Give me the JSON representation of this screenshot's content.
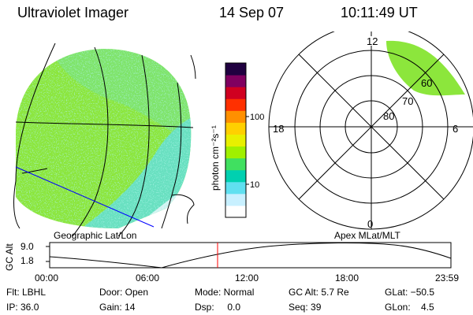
{
  "header": {
    "instrument": "Ultraviolet Imager",
    "date": "14 Sep 07",
    "time": "10:11:49 UT"
  },
  "colorbar": {
    "label": "photon cm⁻²s⁻¹",
    "ticks": [
      "100",
      "10"
    ],
    "colors": [
      "#ffffff",
      "#c8f0ff",
      "#60e0f0",
      "#00d0b0",
      "#40e060",
      "#a0f000",
      "#e8f000",
      "#ffd000",
      "#ff9000",
      "#ff3000",
      "#d00020",
      "#800060",
      "#200040"
    ]
  },
  "globe": {
    "label": "Geographic Lat/Lon",
    "fill_main": "#8ce63c",
    "fill_cyan": "#68e0c0",
    "grid_color": "#000000",
    "track_color": "#0000ff"
  },
  "polar": {
    "label": "Apex MLat/MLT",
    "mlt_labels": {
      "top": "12",
      "right": "6",
      "bottom": "0",
      "left": "18"
    },
    "lat_labels": [
      "60",
      "70",
      "80"
    ],
    "aurora_color": "#8ce63c"
  },
  "timeline": {
    "axis_label": "GC Alt",
    "y_ticks": [
      "9.0",
      "1.8"
    ],
    "x_ticks": [
      "00:00",
      "06:00",
      "12:00",
      "18:00",
      "23:59"
    ],
    "marker_color": "#ff0000"
  },
  "info": {
    "row1": [
      {
        "key": "flt",
        "text": "Flt: LBHL"
      },
      {
        "key": "door",
        "text": "Door: Open"
      },
      {
        "key": "mode",
        "text": "Mode: Normal"
      },
      {
        "key": "gcalt",
        "text": "GC Alt: 5.7 Re"
      },
      {
        "key": "glat",
        "text": "GLat: −50.5"
      }
    ],
    "row2": [
      {
        "key": "ip",
        "text": "IP: 36.0"
      },
      {
        "key": "gain",
        "text": "Gain: 14"
      },
      {
        "key": "dsp",
        "text": "Dsp:     0.0"
      },
      {
        "key": "seq",
        "text": "Seq: 39"
      },
      {
        "key": "glon",
        "text": "GLon:    4.5"
      }
    ]
  }
}
